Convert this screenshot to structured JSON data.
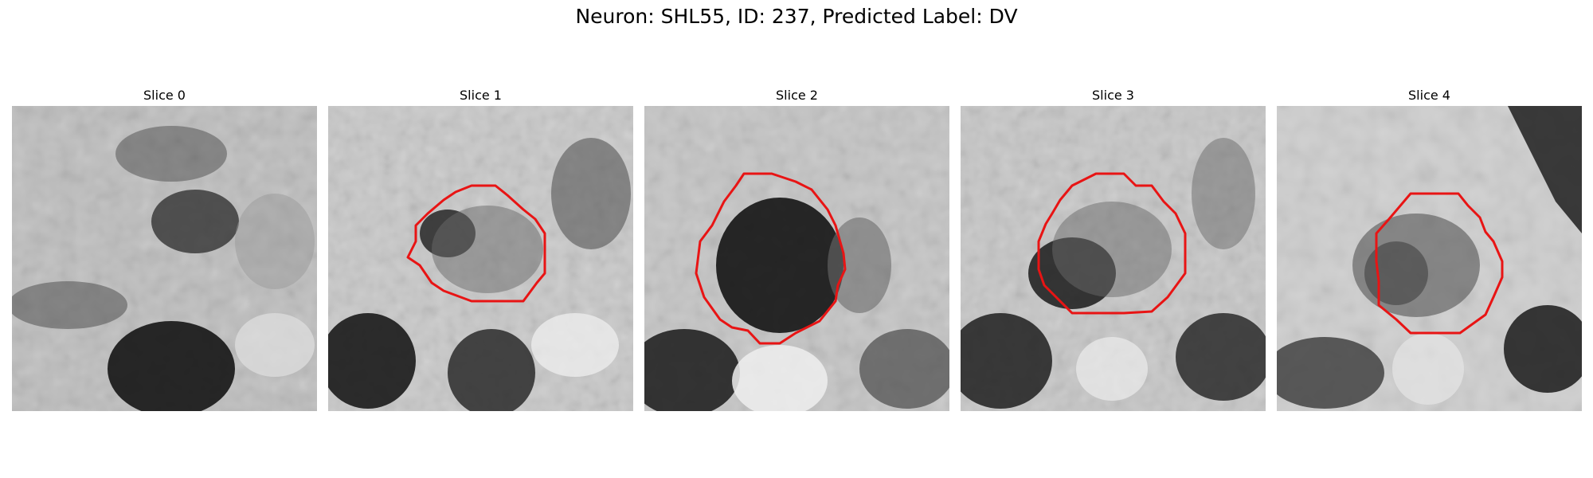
{
  "figure": {
    "title": "Neuron: SHL55, ID: 237, Predicted Label: DV"
  },
  "colors": {
    "contour": "#e81414",
    "background": "#ffffff"
  },
  "slices": [
    {
      "title": "Slice 0",
      "has_contour": false
    },
    {
      "title": "Slice 1",
      "has_contour": true
    },
    {
      "title": "Slice 2",
      "has_contour": true
    },
    {
      "title": "Slice 3",
      "has_contour": true
    },
    {
      "title": "Slice 4",
      "has_contour": true
    }
  ]
}
